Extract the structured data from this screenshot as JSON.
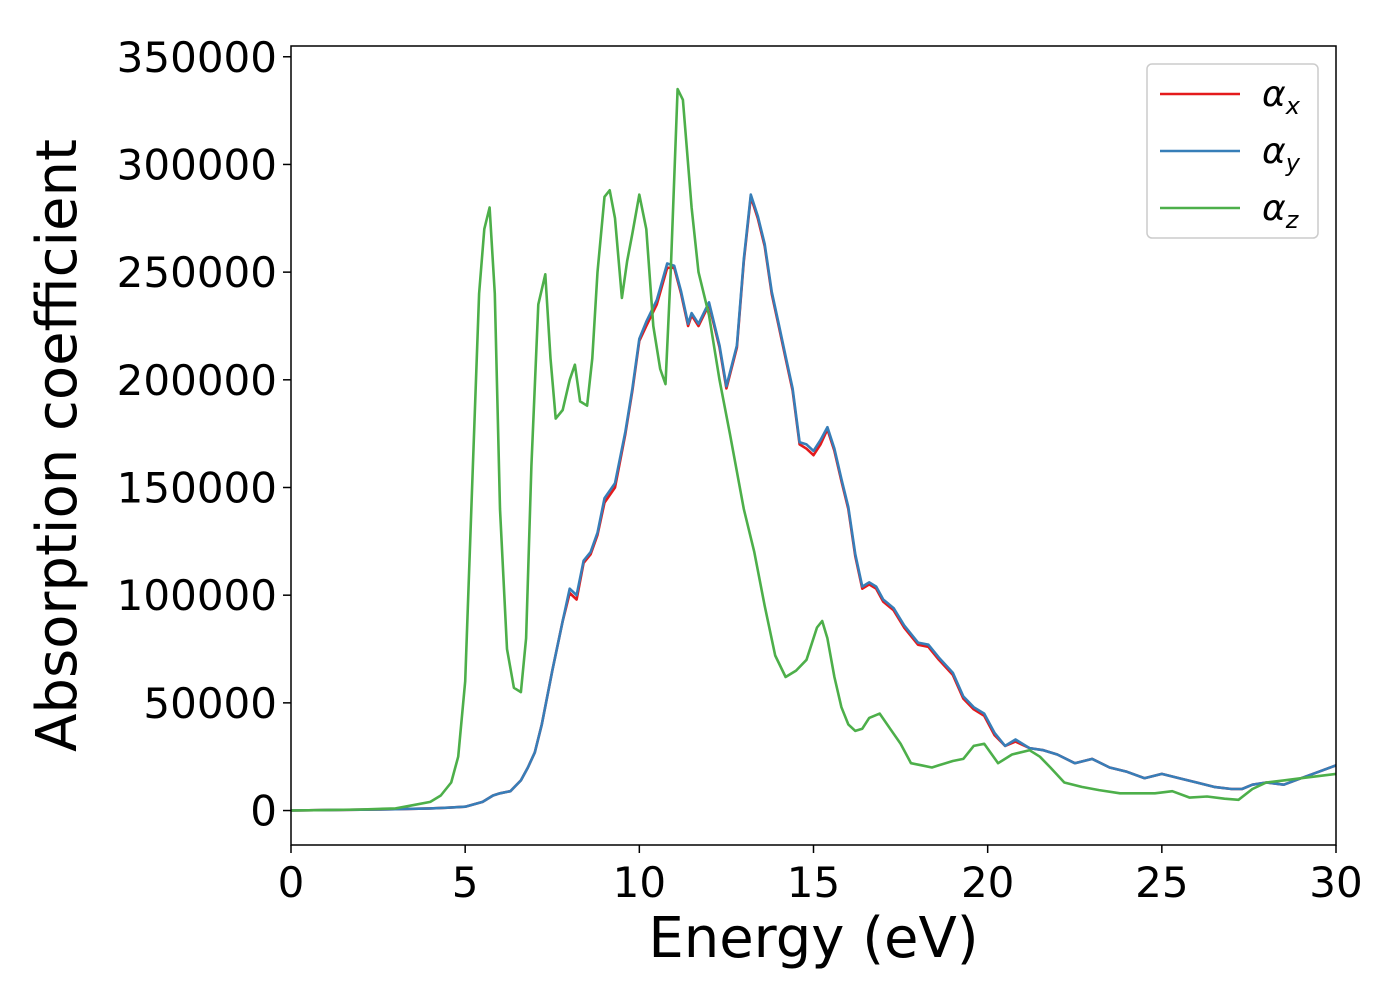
{
  "chart_data": {
    "type": "line",
    "title": "",
    "xlabel": "Energy (eV)",
    "ylabel": "Absorption coefficient",
    "xlim": [
      0,
      30
    ],
    "ylim": [
      -16000,
      355000
    ],
    "xticks": [
      0,
      5,
      10,
      15,
      20,
      25,
      30
    ],
    "yticks": [
      0,
      50000,
      100000,
      150000,
      200000,
      250000,
      300000,
      350000
    ],
    "xtick_labels": [
      "0",
      "5",
      "10",
      "15",
      "20",
      "25",
      "30"
    ],
    "ytick_labels": [
      "0",
      "50000",
      "100000",
      "150000",
      "200000",
      "250000",
      "300000",
      "350000"
    ],
    "grid": false,
    "legend_position": "top-right",
    "series": [
      {
        "name": "αx",
        "symbol": "α",
        "subscript": "x",
        "color": "#e41a1c",
        "x": [
          0,
          1,
          2,
          3,
          3.5,
          4,
          4.5,
          5,
          5.5,
          5.8,
          6,
          6.3,
          6.6,
          6.8,
          7,
          7.2,
          7.5,
          7.8,
          8,
          8.2,
          8.4,
          8.6,
          8.8,
          9,
          9.3,
          9.6,
          9.8,
          10,
          10.2,
          10.5,
          10.8,
          11,
          11.2,
          11.4,
          11.5,
          11.7,
          12,
          12.3,
          12.5,
          12.8,
          13,
          13.2,
          13.4,
          13.6,
          13.8,
          14,
          14.2,
          14.4,
          14.6,
          14.8,
          15,
          15.2,
          15.4,
          15.6,
          15.8,
          16,
          16.2,
          16.4,
          16.6,
          16.8,
          17,
          17.3,
          17.6,
          18,
          18.3,
          18.6,
          19,
          19.3,
          19.6,
          19.9,
          20.2,
          20.5,
          20.8,
          21.2,
          21.6,
          22,
          22.5,
          23,
          23.5,
          24,
          24.5,
          25,
          25.5,
          26,
          26.5,
          27,
          27.3,
          27.6,
          28,
          28.5,
          29,
          29.5,
          30
        ],
        "y": [
          0,
          200,
          400,
          600,
          800,
          1000,
          1300,
          1800,
          4000,
          7000,
          8000,
          9000,
          14000,
          20000,
          27000,
          40000,
          65000,
          88000,
          101000,
          98000,
          115000,
          119000,
          128000,
          143000,
          150000,
          175000,
          195000,
          218000,
          225000,
          235000,
          252000,
          252000,
          240000,
          225000,
          230000,
          225000,
          235000,
          215000,
          196000,
          215000,
          255000,
          285000,
          275000,
          262000,
          240000,
          225000,
          210000,
          195000,
          170000,
          168000,
          165000,
          170000,
          177000,
          167000,
          153000,
          140000,
          118000,
          103000,
          105000,
          103000,
          97000,
          93000,
          85000,
          77000,
          76000,
          70000,
          63000,
          52000,
          47000,
          44000,
          35000,
          30000,
          32000,
          29000,
          28000,
          26000,
          22000,
          24000,
          20000,
          18000,
          15000,
          17000,
          15000,
          13000,
          11000,
          10000,
          10000,
          12000,
          13000,
          12000,
          15000,
          18000,
          21000
        ]
      },
      {
        "name": "αy",
        "symbol": "α",
        "subscript": "y",
        "color": "#377eb8",
        "x": [
          0,
          1,
          2,
          3,
          3.5,
          4,
          4.5,
          5,
          5.5,
          5.8,
          6,
          6.3,
          6.6,
          6.8,
          7,
          7.2,
          7.5,
          7.8,
          8,
          8.2,
          8.4,
          8.6,
          8.8,
          9,
          9.3,
          9.6,
          9.8,
          10,
          10.2,
          10.5,
          10.8,
          11,
          11.2,
          11.4,
          11.5,
          11.7,
          12,
          12.3,
          12.5,
          12.8,
          13,
          13.2,
          13.4,
          13.6,
          13.8,
          14,
          14.2,
          14.4,
          14.6,
          14.8,
          15,
          15.2,
          15.4,
          15.6,
          15.8,
          16,
          16.2,
          16.4,
          16.6,
          16.8,
          17,
          17.3,
          17.6,
          18,
          18.3,
          18.6,
          19,
          19.3,
          19.6,
          19.9,
          20.2,
          20.5,
          20.8,
          21.2,
          21.6,
          22,
          22.5,
          23,
          23.5,
          24,
          24.5,
          25,
          25.5,
          26,
          26.5,
          27,
          27.3,
          27.6,
          28,
          28.5,
          29,
          29.5,
          30
        ],
        "y": [
          0,
          200,
          400,
          600,
          800,
          1000,
          1300,
          1800,
          4000,
          7000,
          8000,
          9000,
          14000,
          20000,
          27000,
          40000,
          65000,
          88000,
          103000,
          100000,
          116000,
          120000,
          129000,
          145000,
          152000,
          176000,
          196000,
          219000,
          227000,
          237000,
          254000,
          253000,
          241000,
          226000,
          231000,
          226000,
          236000,
          216000,
          197000,
          216000,
          256000,
          286000,
          276000,
          263000,
          241000,
          226000,
          211000,
          196000,
          171000,
          170000,
          167000,
          172000,
          178000,
          168000,
          154000,
          141000,
          119000,
          104000,
          106000,
          104000,
          98000,
          94000,
          86000,
          78000,
          77000,
          71000,
          64000,
          53000,
          48000,
          45000,
          36000,
          30000,
          33000,
          29000,
          28000,
          26000,
          22000,
          24000,
          20000,
          18000,
          15000,
          17000,
          15000,
          13000,
          11000,
          10000,
          10000,
          12000,
          13000,
          12000,
          15000,
          18000,
          21000
        ]
      },
      {
        "name": "αz",
        "symbol": "α",
        "subscript": "z",
        "color": "#4daf4a",
        "x": [
          0,
          1,
          2,
          3,
          3.5,
          4,
          4.3,
          4.6,
          4.8,
          5,
          5.2,
          5.4,
          5.55,
          5.7,
          5.85,
          6,
          6.2,
          6.4,
          6.6,
          6.75,
          6.9,
          7.1,
          7.3,
          7.45,
          7.6,
          7.8,
          8,
          8.15,
          8.3,
          8.5,
          8.65,
          8.8,
          9,
          9.15,
          9.3,
          9.5,
          9.65,
          9.8,
          10,
          10.2,
          10.4,
          10.6,
          10.75,
          10.9,
          11.1,
          11.25,
          11.5,
          11.7,
          12,
          12.3,
          12.6,
          13,
          13.3,
          13.6,
          13.9,
          14.2,
          14.5,
          14.8,
          15.1,
          15.25,
          15.4,
          15.6,
          15.8,
          16,
          16.2,
          16.4,
          16.6,
          16.9,
          17.2,
          17.5,
          17.8,
          18.1,
          18.4,
          18.6,
          19,
          19.3,
          19.6,
          19.9,
          20.3,
          20.7,
          21.2,
          21.5,
          21.8,
          22.2,
          22.7,
          23.2,
          23.8,
          24.3,
          24.8,
          25.3,
          25.8,
          26.3,
          26.8,
          27.2,
          27.6,
          28,
          28.5,
          29,
          29.5,
          30
        ],
        "y": [
          0,
          200,
          500,
          1000,
          2500,
          4000,
          7000,
          13000,
          25000,
          60000,
          150000,
          240000,
          270000,
          280000,
          240000,
          140000,
          75000,
          57000,
          55000,
          80000,
          160000,
          235000,
          249000,
          210000,
          182000,
          186000,
          200000,
          207000,
          190000,
          188000,
          210000,
          250000,
          285000,
          288000,
          275000,
          238000,
          255000,
          268000,
          286000,
          270000,
          225000,
          205000,
          198000,
          250000,
          335000,
          330000,
          280000,
          250000,
          230000,
          200000,
          175000,
          140000,
          120000,
          95000,
          72000,
          62000,
          65000,
          70000,
          85000,
          88000,
          80000,
          62000,
          48000,
          40000,
          37000,
          38000,
          43000,
          45000,
          38000,
          31000,
          22000,
          21000,
          20000,
          21000,
          23000,
          24000,
          30000,
          31000,
          22000,
          26000,
          28000,
          25000,
          20000,
          13000,
          11000,
          9500,
          8000,
          8000,
          8000,
          9000,
          6000,
          6500,
          5500,
          5000,
          10000,
          13000,
          14000,
          15000,
          16000,
          17000
        ]
      }
    ]
  }
}
